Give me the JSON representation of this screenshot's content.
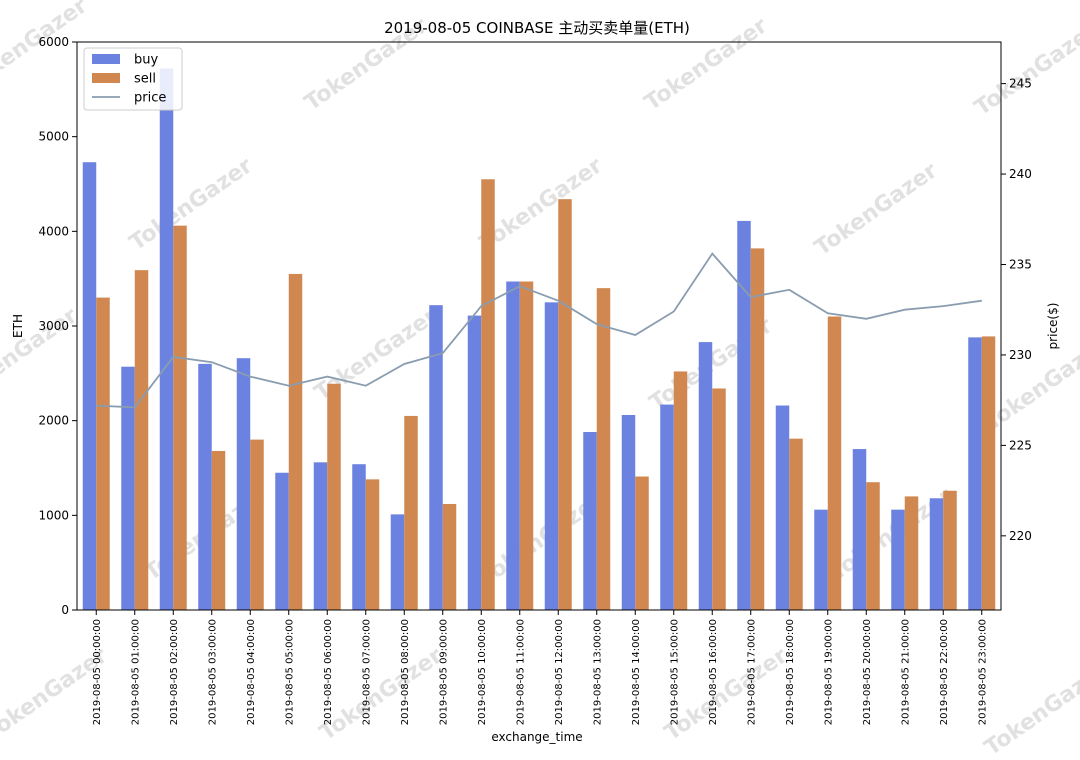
{
  "chart_data": {
    "type": "bar",
    "title": "2019-08-05 COINBASE 主动买卖单量(ETH)",
    "xlabel": "exchange_time",
    "ylabel": "ETH",
    "y2label": "price($)",
    "ylim": [
      0,
      6000
    ],
    "y2lim": [
      215.9,
      247.3
    ],
    "yticks": [
      0,
      1000,
      2000,
      3000,
      4000,
      5000,
      6000
    ],
    "y2ticks": [
      220,
      225,
      230,
      235,
      240,
      245
    ],
    "legend": "top-left",
    "grid": false,
    "categories": [
      "2019-08-05 00:00:00",
      "2019-08-05 01:00:00",
      "2019-08-05 02:00:00",
      "2019-08-05 03:00:00",
      "2019-08-05 04:00:00",
      "2019-08-05 05:00:00",
      "2019-08-05 06:00:00",
      "2019-08-05 07:00:00",
      "2019-08-05 08:00:00",
      "2019-08-05 09:00:00",
      "2019-08-05 10:00:00",
      "2019-08-05 11:00:00",
      "2019-08-05 12:00:00",
      "2019-08-05 13:00:00",
      "2019-08-05 14:00:00",
      "2019-08-05 15:00:00",
      "2019-08-05 16:00:00",
      "2019-08-05 17:00:00",
      "2019-08-05 18:00:00",
      "2019-08-05 19:00:00",
      "2019-08-05 20:00:00",
      "2019-08-05 21:00:00",
      "2019-08-05 22:00:00",
      "2019-08-05 23:00:00"
    ],
    "series": [
      {
        "name": "buy",
        "color": "#6b82e0",
        "values": [
          4730,
          2570,
          5720,
          2600,
          2660,
          1450,
          1560,
          1540,
          1010,
          3220,
          3110,
          3470,
          3250,
          1880,
          2060,
          2170,
          2830,
          4110,
          2160,
          1060,
          1700,
          1060,
          1180,
          2880
        ]
      },
      {
        "name": "sell",
        "color": "#d08850",
        "values": [
          3300,
          3590,
          4060,
          1680,
          1800,
          3550,
          2390,
          1380,
          2050,
          1120,
          4550,
          3470,
          4340,
          3400,
          1410,
          2520,
          2340,
          3820,
          1810,
          3100,
          1350,
          1200,
          1260,
          2890
        ]
      },
      {
        "name": "price",
        "type": "line",
        "color": "#8a9db0",
        "values": [
          227.2,
          227.1,
          229.9,
          229.6,
          228.8,
          228.3,
          228.8,
          228.3,
          229.5,
          230.1,
          232.7,
          233.8,
          233.0,
          231.7,
          231.1,
          232.4,
          235.6,
          233.2,
          233.6,
          232.3,
          232.0,
          232.5,
          232.7,
          233.0
        ]
      }
    ]
  },
  "watermark": "TokenGazer"
}
